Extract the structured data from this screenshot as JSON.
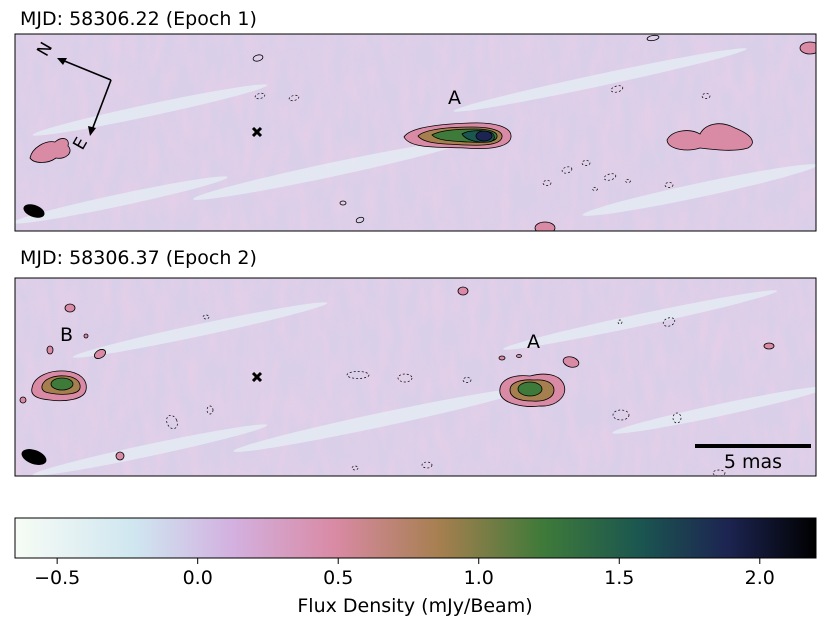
{
  "chart_data": [
    {
      "type": "heatmap",
      "title": "MJD: 58306.22 (Epoch 1)",
      "components": [
        {
          "label": "A"
        }
      ],
      "compass": {
        "north": "N",
        "east": "E"
      },
      "colorbar_ref": "Flux Density (mJy/Beam)"
    },
    {
      "type": "heatmap",
      "title": "MJD: 58306.37 (Epoch 2)",
      "components": [
        {
          "label": "B"
        },
        {
          "label": "A"
        }
      ],
      "scalebar": {
        "label": "5 mas"
      },
      "colorbar_ref": "Flux Density (mJy/Beam)"
    }
  ],
  "colorbar": {
    "label": "Flux Density (mJy/Beam)",
    "range": [
      -0.65,
      2.2
    ],
    "ticks": [
      -0.5,
      0.0,
      0.5,
      1.0,
      1.5,
      2.0
    ],
    "tick_labels": [
      "−0.5",
      "0.0",
      "0.5",
      "1.0",
      "1.5",
      "2.0"
    ],
    "colors": [
      "#f7fcf5",
      "#cfe6f0",
      "#d3b1e0",
      "#d98aa4",
      "#a67f4f",
      "#3e7a39",
      "#1b5650",
      "#1c2451",
      "#000000"
    ]
  }
}
